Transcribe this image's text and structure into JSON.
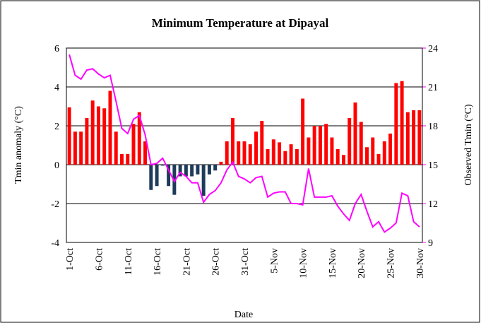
{
  "chart_data": {
    "type": "bar_line",
    "title": "Minimum Temperature at Dipayal",
    "xlabel": "Date",
    "ylabel": "Tmin anomaly (°C)",
    "y2label": "Observed Tmin (°C)",
    "categories": [
      "1-Oct",
      null,
      null,
      null,
      null,
      "6-Oct",
      null,
      null,
      null,
      null,
      "11-Oct",
      null,
      null,
      null,
      null,
      "16-Oct",
      null,
      null,
      null,
      null,
      "21-Oct",
      null,
      null,
      null,
      null,
      "26-Oct",
      null,
      null,
      null,
      null,
      "31-Oct",
      null,
      null,
      null,
      null,
      "5-Nov",
      null,
      null,
      null,
      null,
      "10-Nov",
      null,
      null,
      null,
      null,
      "15-Nov",
      null,
      null,
      null,
      null,
      "20-Nov",
      null,
      null,
      null,
      null,
      "25-Nov",
      null,
      null,
      null,
      null,
      "30-Nov"
    ],
    "series": [
      {
        "type": "bar",
        "color": "#ff0000",
        "negative_color": "#1f3b5a",
        "axis": "y",
        "values": [
          2.95,
          1.7,
          1.7,
          2.4,
          3.3,
          3.0,
          2.9,
          3.8,
          1.7,
          0.55,
          0.55,
          2.1,
          2.7,
          1.2,
          -1.3,
          -1.1,
          -0.05,
          -1.1,
          -1.55,
          -0.6,
          -0.6,
          -0.6,
          -0.5,
          -1.6,
          -0.5,
          -0.3,
          0.15,
          1.2,
          2.4,
          1.2,
          1.2,
          1.05,
          1.7,
          2.25,
          0.8,
          1.3,
          1.15,
          0.7,
          1.05,
          0.8,
          3.4,
          1.4,
          2.0,
          2.0,
          2.1,
          1.4,
          0.8,
          0.5,
          2.4,
          3.2,
          2.2,
          0.9,
          1.4,
          0.55,
          1.2,
          1.6,
          4.2,
          4.3,
          2.7,
          2.8,
          2.8
        ]
      },
      {
        "type": "line",
        "color": "#ff00ff",
        "axis": "y2",
        "values": [
          23.5,
          21.9,
          21.6,
          22.3,
          22.4,
          22.0,
          21.7,
          21.9,
          19.9,
          17.8,
          17.4,
          18.5,
          18.8,
          17.3,
          15.0,
          15.1,
          15.5,
          14.6,
          13.7,
          14.4,
          14.1,
          13.6,
          13.6,
          12.1,
          12.7,
          13.0,
          13.6,
          14.6,
          15.2,
          14.1,
          13.9,
          13.6,
          14.0,
          14.1,
          12.5,
          12.8,
          12.9,
          12.9,
          12.0,
          12.0,
          11.9,
          14.7,
          12.5,
          12.5,
          12.5,
          12.6,
          11.8,
          11.2,
          10.7,
          12.0,
          12.7,
          11.4,
          10.2,
          10.6,
          9.8,
          10.1,
          10.5,
          12.8,
          12.6,
          10.6,
          10.2
        ]
      }
    ],
    "ylim": [
      -4,
      6
    ],
    "yticks": [
      -4,
      -2,
      0,
      2,
      4,
      6
    ],
    "y2lim": [
      9,
      24
    ],
    "y2ticks": [
      9,
      12,
      15,
      18,
      21,
      24
    ],
    "y2color": "#ff00ff",
    "grid": true
  }
}
